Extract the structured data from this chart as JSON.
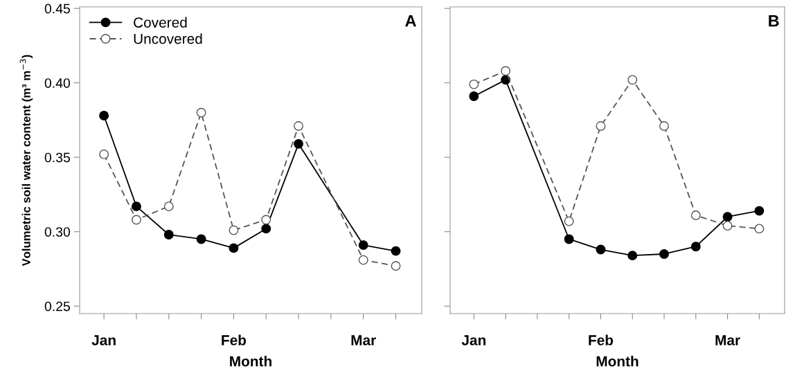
{
  "chart_data": [
    {
      "type": "line",
      "xlabel": "Month",
      "ylabel": "Volumetric soil water content (m³ m$^{−3}$)",
      "annotations": [
        "A"
      ],
      "categories": [
        "Jan",
        null,
        null,
        null,
        "Feb",
        null,
        null,
        null,
        "Mar",
        null
      ],
      "ylim": [
        0.245,
        0.451
      ],
      "yticks": [
        {
          "value": 0.25,
          "label": "0.25"
        },
        {
          "value": 0.3,
          "label": "0.30"
        },
        {
          "value": 0.35,
          "label": "0.35"
        },
        {
          "value": 0.4,
          "label": "0.40"
        },
        {
          "value": 0.45,
          "label": "0.45"
        }
      ],
      "grid": false,
      "legend": "top left",
      "series": [
        {
          "name": "Covered",
          "color": "#000000",
          "marker": "circle",
          "line_style": "solid",
          "values": [
            0.378,
            0.317,
            0.298,
            0.295,
            0.289,
            0.302,
            0.359,
            null,
            0.291,
            0.287
          ]
        },
        {
          "name": "Uncovered",
          "color": "#555555",
          "marker": "circle",
          "line_style": "dashed",
          "values": [
            0.352,
            0.308,
            0.317,
            0.38,
            0.301,
            0.308,
            0.371,
            null,
            0.281,
            0.277
          ]
        }
      ]
    },
    {
      "type": "line",
      "xlabel": "Month",
      "annotations": [
        "B"
      ],
      "categories": [
        "Jan",
        null,
        null,
        null,
        "Feb",
        null,
        null,
        null,
        "Mar",
        null
      ],
      "ylim": [
        0.245,
        0.451
      ],
      "yticks": [
        {
          "value": 0.25,
          "label": null
        },
        {
          "value": 0.3,
          "label": null
        },
        {
          "value": 0.35,
          "label": null
        },
        {
          "value": 0.4,
          "label": null
        },
        {
          "value": 0.45,
          "label": null
        }
      ],
      "grid": false,
      "tick_labels": "x",
      "series": [
        {
          "color": "#000000",
          "marker": "circle",
          "line_style": "solid",
          "values": [
            0.391,
            0.402,
            null,
            0.295,
            0.288,
            0.284,
            0.285,
            0.29,
            0.31,
            0.314
          ]
        },
        {
          "color": "#555555",
          "marker": "circle",
          "line_style": "dashed",
          "values": [
            0.399,
            0.408,
            null,
            0.307,
            0.371,
            0.402,
            0.371,
            0.311,
            0.304,
            0.302
          ]
        }
      ]
    }
  ]
}
